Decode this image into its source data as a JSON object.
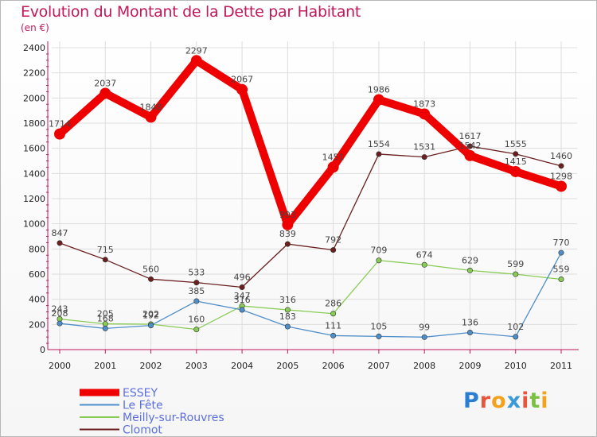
{
  "title": "Evolution du Montant de la Dette par Habitant",
  "subtitle": "(en €)",
  "logo": {
    "text": "Proxiti"
  },
  "colors": {
    "title": "#c2185b",
    "axis": "#c2185b",
    "grid": "#dddddd",
    "legend_text": "#5b6ee1"
  },
  "chart_data": {
    "type": "line",
    "title": "Evolution du Montant de la Dette par Habitant",
    "subtitle": "(en €)",
    "xlabel": "",
    "ylabel": "",
    "x": [
      "2000",
      "2001",
      "2002",
      "2003",
      "2004",
      "2005",
      "2006",
      "2007",
      "2008",
      "2009",
      "2010",
      "2011"
    ],
    "ylim": [
      0,
      2400
    ],
    "yticks": [
      "0",
      "200",
      "400",
      "600",
      "800",
      "1000",
      "1200",
      "1400",
      "1600",
      "1800",
      "2000",
      "2200",
      "2400"
    ],
    "grid": true,
    "legend": "bottom-left",
    "series": [
      {
        "name": "ESSEY",
        "color": "#ee0000",
        "values": [
          1714,
          2037,
          1848,
          2297,
          2067,
          993,
          1451,
          1986,
          1873,
          1542,
          1415,
          1298
        ],
        "labels": [
          "1714",
          "2037",
          "1848",
          "2297",
          "2067",
          "993",
          "1451",
          "1986",
          "1873",
          "1542",
          "1415",
          "1298"
        ]
      },
      {
        "name": "Le Fête",
        "color": "#4f8fc9",
        "values": [
          208,
          168,
          192,
          385,
          316,
          183,
          111,
          105,
          99,
          136,
          102,
          770
        ],
        "labels": [
          "208",
          "168",
          "192",
          "385",
          "316",
          "183",
          "111",
          "105",
          "99",
          "136",
          "102",
          "770"
        ]
      },
      {
        "name": "Meilly-sur-Rouvres",
        "color": "#88cc55",
        "values": [
          243,
          205,
          202,
          160,
          347,
          316,
          286,
          709,
          674,
          629,
          599,
          559
        ],
        "labels": [
          "243",
          "205",
          "202",
          "160",
          "347",
          "316",
          "286",
          "709",
          "674",
          "629",
          "599",
          "559"
        ]
      },
      {
        "name": "Clomot",
        "color": "#6b1f1f",
        "values": [
          847,
          715,
          560,
          533,
          496,
          839,
          792,
          1554,
          1531,
          1617,
          1555,
          1460
        ],
        "labels": [
          "847",
          "715",
          "560",
          "533",
          "496",
          "839",
          "792",
          "1554",
          "1531",
          "1617",
          "1555",
          "1460"
        ]
      }
    ]
  }
}
